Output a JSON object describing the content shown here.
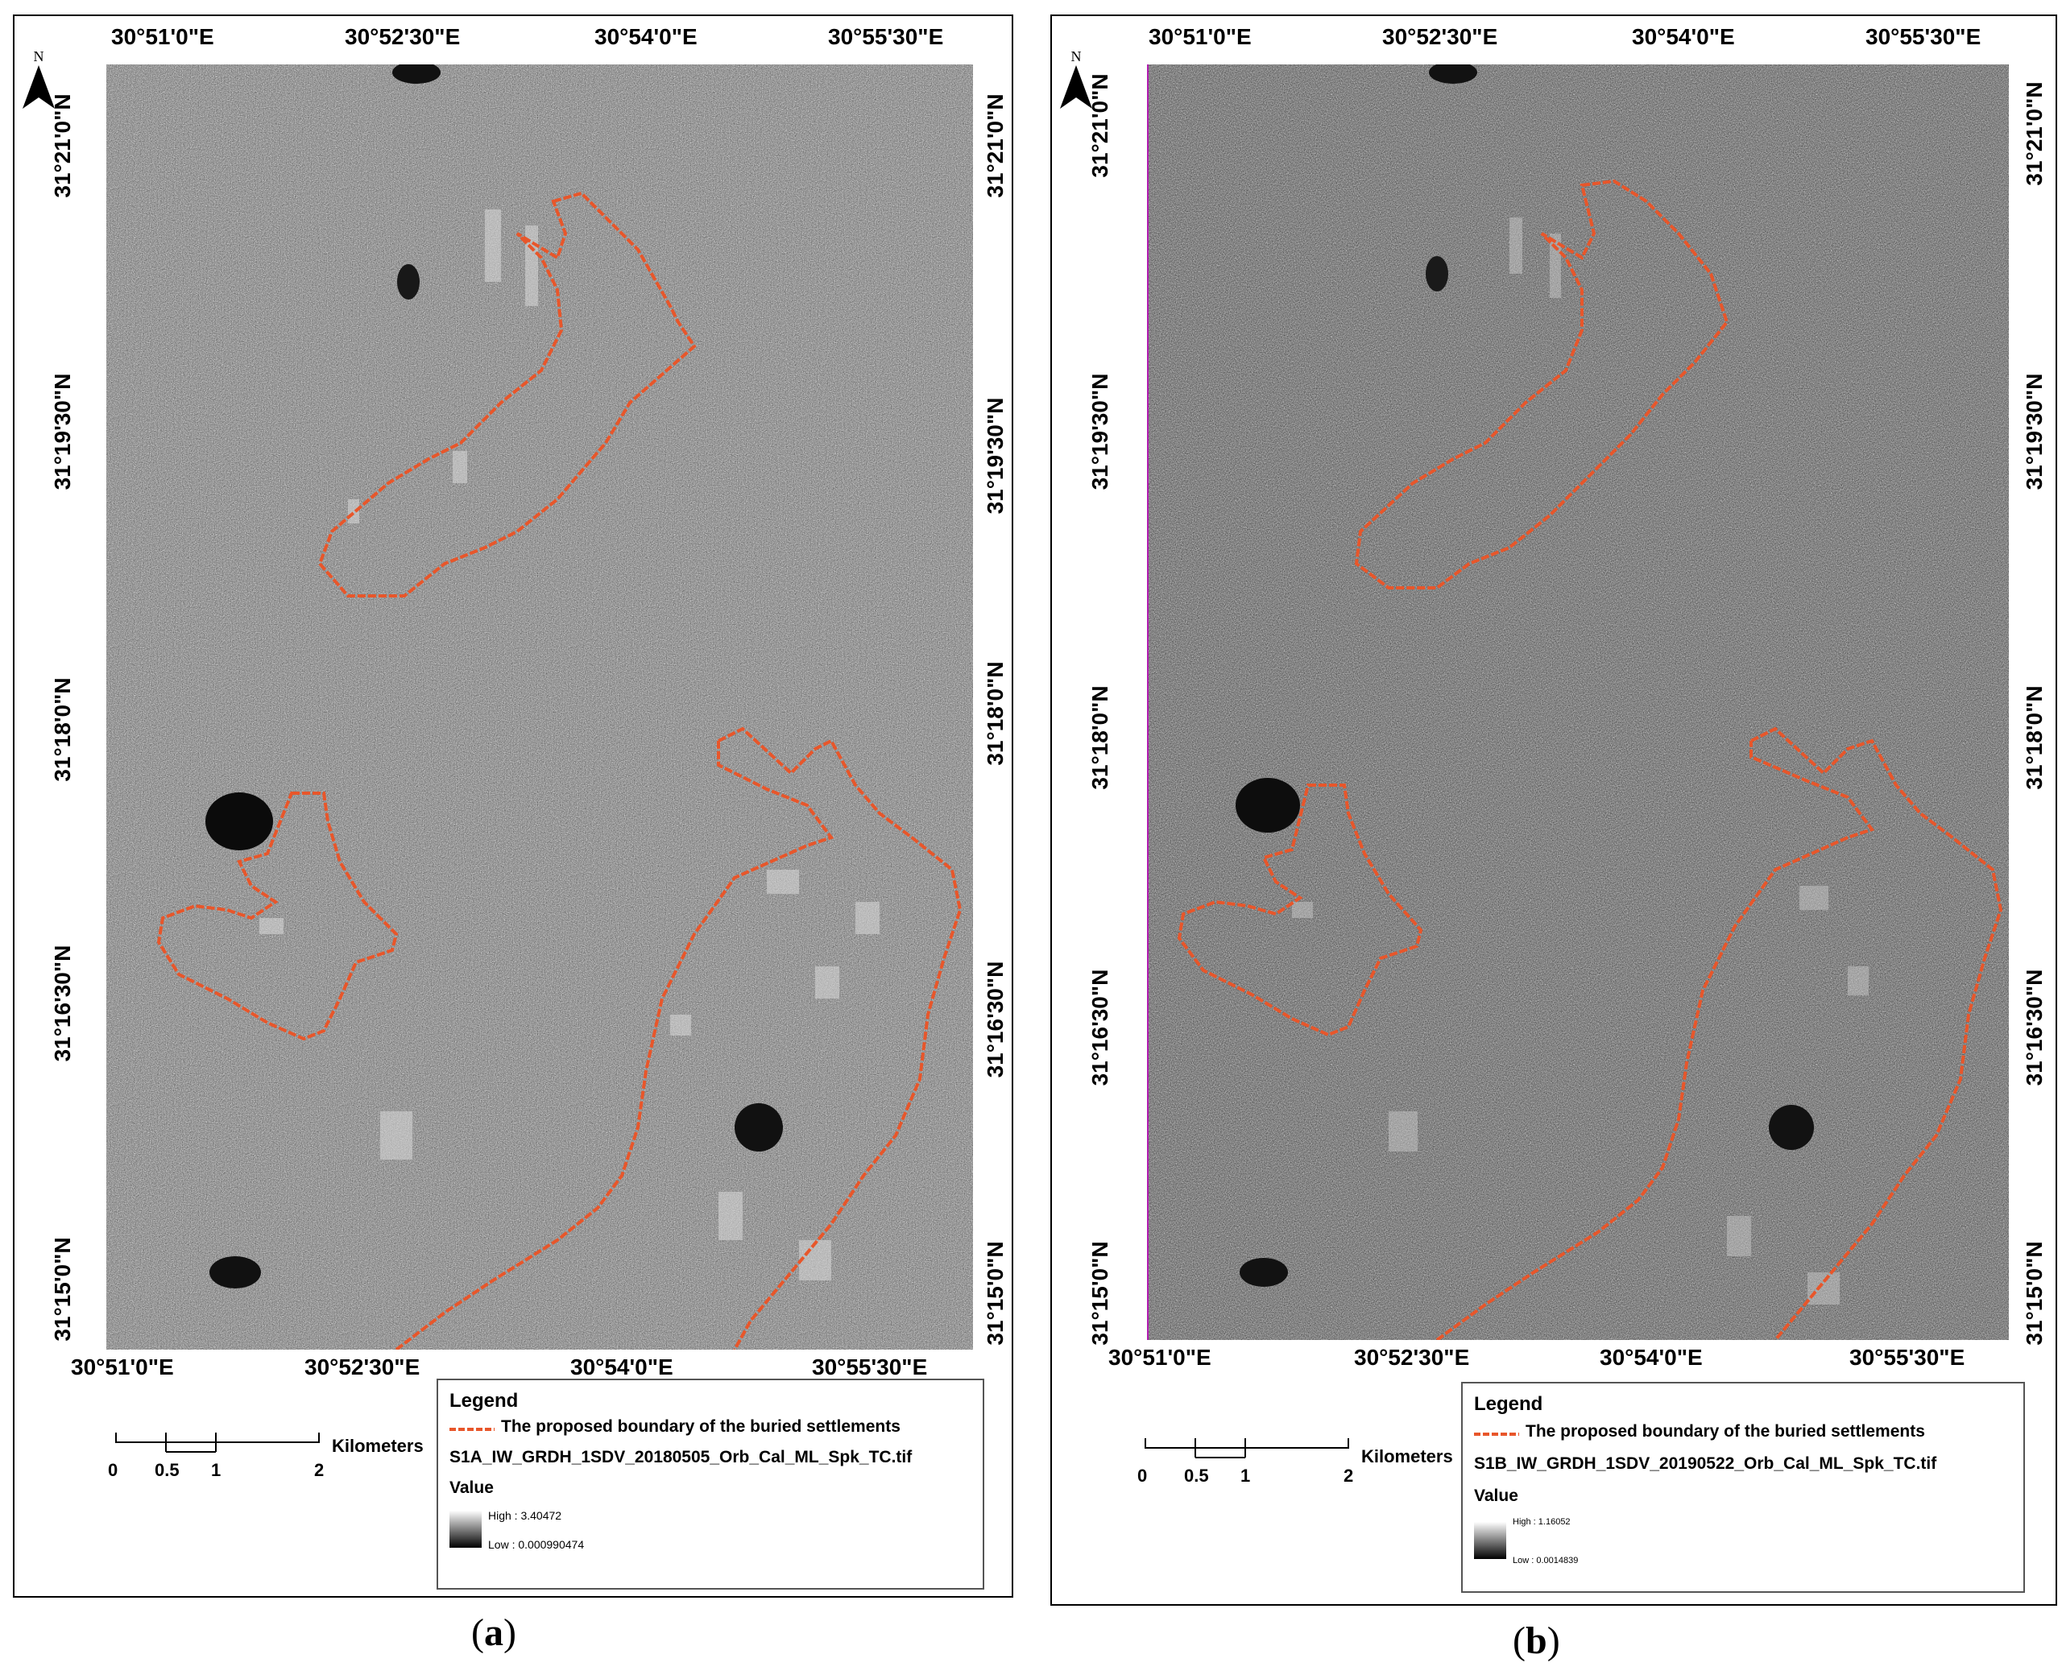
{
  "panels": [
    {
      "id": "a",
      "caption_open": "(",
      "caption_letter": "a",
      "caption_close": ")",
      "north": "N",
      "top_lon_labels": [
        "30°51'0\"E",
        "30°52'30\"E",
        "30°54'0\"E",
        "30°55'30\"E"
      ],
      "bottom_lon_labels": [
        "30°51'0\"E",
        "30°52'30\"E",
        "30°54'0\"E",
        "30°55'30\"E"
      ],
      "left_lat_labels": [
        "31°21'0\"N",
        "31°19'30\"N",
        "31°18'0\"N",
        "31°16'30\"N",
        "31°15'0\"N"
      ],
      "right_lat_labels": [
        "31°21'0\"N",
        "31°19'30\"N",
        "31°18'0\"N",
        "31°16'30\"N",
        "31°15'0\"N"
      ],
      "scale": {
        "ticks": [
          "0",
          "0.5",
          "1",
          "2"
        ],
        "unit": "Kilometers"
      },
      "legend": {
        "title": "Legend",
        "boundary_label": "The proposed boundary of the buried settlements",
        "raster_name": "S1A_IW_GRDH_1SDV_20180505_Orb_Cal_ML_Spk_TC.tif",
        "value_label": "Value",
        "high": "High : 3.40472",
        "low": "Low : 0.000990474"
      }
    },
    {
      "id": "b",
      "caption_open": "(",
      "caption_letter": "b",
      "caption_close": ")",
      "north": "N",
      "top_lon_labels": [
        "30°51'0\"E",
        "30°52'30\"E",
        "30°54'0\"E",
        "30°55'30\"E"
      ],
      "bottom_lon_labels": [
        "30°51'0\"E",
        "30°52'30\"E",
        "30°54'0\"E",
        "30°55'30\"E"
      ],
      "left_lat_labels": [
        "31°21'0\"N",
        "31°19'30\"N",
        "31°18'0\"N",
        "31°16'30\"N",
        "31°15'0\"N"
      ],
      "right_lat_labels": [
        "31°21'0\"N",
        "31°19'30\"N",
        "31°18'0\"N",
        "31°16'30\"N",
        "31°15'0\"N"
      ],
      "scale": {
        "ticks": [
          "0",
          "0.5",
          "1",
          "2"
        ],
        "unit": "Kilometers"
      },
      "legend": {
        "title": "Legend",
        "boundary_label": "The proposed boundary of the buried settlements",
        "raster_name": "S1B_IW_GRDH_1SDV_20190522_Orb_Cal_ML_Spk_TC.tif",
        "value_label": "Value",
        "high": "High : 1.16052",
        "low": "Low : 0.0014839"
      }
    }
  ],
  "colors": {
    "boundary": "#e8562a",
    "frame": "#000000"
  }
}
